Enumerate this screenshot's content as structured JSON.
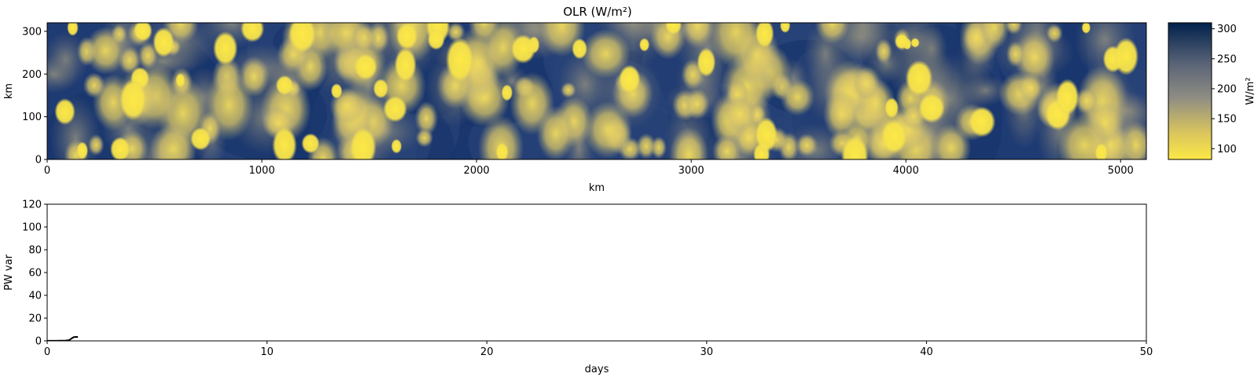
{
  "chart_data": [
    {
      "type": "heatmap",
      "title": "OLR (W/m²)",
      "xlabel": "km",
      "ylabel": "km",
      "xlim": [
        0,
        5120
      ],
      "ylim": [
        0,
        320
      ],
      "xticks": [
        0,
        1000,
        2000,
        3000,
        4000,
        5000
      ],
      "yticks": [
        0,
        100,
        200,
        300
      ],
      "colormap": "cividis_r",
      "colorbar": {
        "label": "W/m²",
        "range": [
          82,
          310
        ],
        "ticks": [
          100,
          150,
          200,
          250,
          300
        ],
        "low_color": "#fde945",
        "mid_color": "#7c7b78",
        "high_color": "#00204c"
      },
      "description_fields": "convective cloud field: bright yellow (low OLR) blobs on a dark-blue (high OLR) background"
    },
    {
      "type": "line",
      "xlabel": "days",
      "ylabel": "PW var",
      "xlim": [
        0,
        50
      ],
      "ylim": [
        0,
        120
      ],
      "xticks": [
        0,
        10,
        20,
        30,
        40,
        50
      ],
      "yticks": [
        0,
        20,
        40,
        60,
        80,
        100,
        120
      ],
      "grid": false,
      "series": [
        {
          "color": "#000000",
          "x": [
            0,
            0.2,
            0.4,
            0.6,
            0.8,
            1.0,
            1.1,
            1.2,
            1.3,
            1.4
          ],
          "y": [
            0.1,
            0.1,
            0.1,
            0.15,
            0.2,
            0.6,
            2.0,
            3.2,
            3.5,
            3.4
          ]
        }
      ]
    }
  ]
}
